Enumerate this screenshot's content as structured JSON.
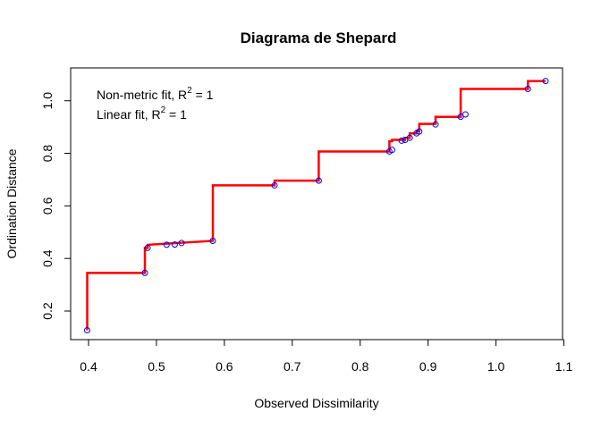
{
  "chart_data": {
    "type": "scatter",
    "title": "Diagrama de Shepard",
    "xlabel": "Observed Dissimilarity",
    "ylabel": "Ordination Distance",
    "xlim": [
      0.4,
      1.1
    ],
    "ylim": [
      0.2,
      1.0
    ],
    "xticks": [
      "0.4",
      "0.5",
      "0.6",
      "0.7",
      "0.8",
      "0.9",
      "1.0",
      "1.1"
    ],
    "yticks": [
      "0.2",
      "0.4",
      "0.6",
      "0.8",
      "1.0"
    ],
    "grid": false,
    "legend_position": "top-left",
    "annotations": [
      {
        "prefix": "Non-metric fit, R",
        "sup": "2",
        "suffix": " = 1"
      },
      {
        "prefix": "Linear fit, R",
        "sup": "2",
        "suffix": " = 1"
      }
    ],
    "points": {
      "color": "#0000ff",
      "x": [
        0.398,
        0.483,
        0.487,
        0.515,
        0.527,
        0.537,
        0.583,
        0.674,
        0.739,
        0.843,
        0.847,
        0.861,
        0.866,
        0.873,
        0.883,
        0.887,
        0.911,
        0.948,
        0.955,
        1.047,
        1.073
      ],
      "y": [
        0.127,
        0.345,
        0.44,
        0.452,
        0.453,
        0.459,
        0.467,
        0.678,
        0.696,
        0.807,
        0.813,
        0.848,
        0.851,
        0.859,
        0.876,
        0.883,
        0.91,
        0.939,
        0.948,
        1.045,
        1.075
      ]
    },
    "step_line": {
      "color": "#ff0000",
      "x": [
        0.398,
        0.398,
        0.483,
        0.483,
        0.487,
        0.487,
        0.583,
        0.583,
        0.674,
        0.674,
        0.739,
        0.739,
        0.843,
        0.843,
        0.847,
        0.847,
        0.866,
        0.866,
        0.873,
        0.873,
        0.883,
        0.883,
        0.887,
        0.887,
        0.911,
        0.911,
        0.948,
        0.948,
        0.955,
        0.955,
        1.047,
        1.047,
        1.073
      ],
      "y": [
        0.127,
        0.345,
        0.345,
        0.44,
        0.44,
        0.452,
        0.467,
        0.678,
        0.678,
        0.696,
        0.696,
        0.807,
        0.807,
        0.846,
        0.846,
        0.851,
        0.851,
        0.859,
        0.859,
        0.876,
        0.876,
        0.885,
        0.885,
        0.912,
        0.912,
        0.939,
        0.939,
        1.045,
        1.045,
        1.045,
        1.045,
        1.075,
        1.075
      ]
    }
  }
}
